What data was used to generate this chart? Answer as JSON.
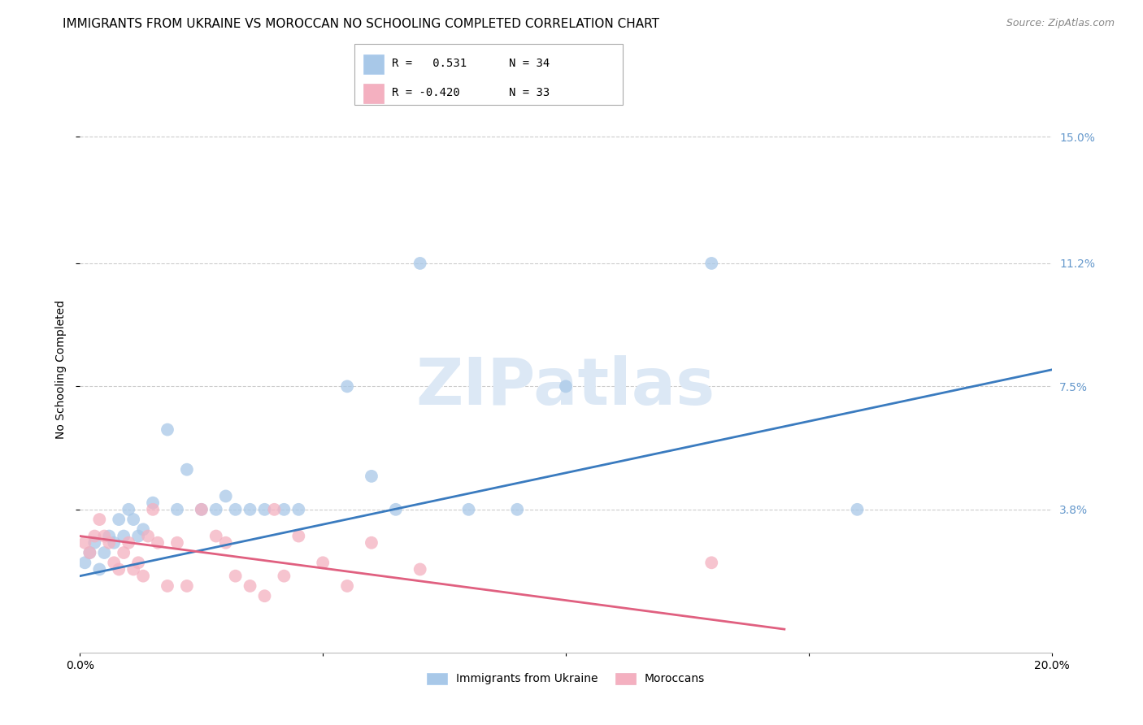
{
  "title": "IMMIGRANTS FROM UKRAINE VS MOROCCAN NO SCHOOLING COMPLETED CORRELATION CHART",
  "source": "Source: ZipAtlas.com",
  "ylabel": "No Schooling Completed",
  "ytick_labels": [
    "15.0%",
    "11.2%",
    "7.5%",
    "3.8%"
  ],
  "ytick_values": [
    0.15,
    0.112,
    0.075,
    0.038
  ],
  "xlim": [
    0.0,
    0.2
  ],
  "ylim": [
    -0.005,
    0.165
  ],
  "watermark": "ZIPatlas",
  "blue_scatter_x": [
    0.001,
    0.002,
    0.003,
    0.004,
    0.005,
    0.006,
    0.007,
    0.008,
    0.009,
    0.01,
    0.011,
    0.012,
    0.013,
    0.015,
    0.018,
    0.02,
    0.022,
    0.025,
    0.028,
    0.03,
    0.032,
    0.035,
    0.038,
    0.042,
    0.045,
    0.055,
    0.06,
    0.065,
    0.07,
    0.08,
    0.09,
    0.1,
    0.13,
    0.16
  ],
  "blue_scatter_y": [
    0.022,
    0.025,
    0.028,
    0.02,
    0.025,
    0.03,
    0.028,
    0.035,
    0.03,
    0.038,
    0.035,
    0.03,
    0.032,
    0.04,
    0.062,
    0.038,
    0.05,
    0.038,
    0.038,
    0.042,
    0.038,
    0.038,
    0.038,
    0.038,
    0.038,
    0.075,
    0.048,
    0.038,
    0.112,
    0.038,
    0.038,
    0.075,
    0.112,
    0.038
  ],
  "pink_scatter_x": [
    0.001,
    0.002,
    0.003,
    0.004,
    0.005,
    0.006,
    0.007,
    0.008,
    0.009,
    0.01,
    0.011,
    0.012,
    0.013,
    0.014,
    0.015,
    0.016,
    0.018,
    0.02,
    0.022,
    0.025,
    0.028,
    0.03,
    0.032,
    0.035,
    0.038,
    0.04,
    0.042,
    0.045,
    0.05,
    0.055,
    0.06,
    0.07,
    0.13
  ],
  "pink_scatter_y": [
    0.028,
    0.025,
    0.03,
    0.035,
    0.03,
    0.028,
    0.022,
    0.02,
    0.025,
    0.028,
    0.02,
    0.022,
    0.018,
    0.03,
    0.038,
    0.028,
    0.015,
    0.028,
    0.015,
    0.038,
    0.03,
    0.028,
    0.018,
    0.015,
    0.012,
    0.038,
    0.018,
    0.03,
    0.022,
    0.015,
    0.028,
    0.02,
    0.022
  ],
  "blue_line_x": [
    0.0,
    0.2
  ],
  "blue_line_y": [
    0.018,
    0.08
  ],
  "pink_line_x": [
    0.0,
    0.145
  ],
  "pink_line_y": [
    0.03,
    0.002
  ],
  "blue_color": "#a8c8e8",
  "pink_color": "#f4b0c0",
  "blue_line_color": "#3a7bbf",
  "pink_line_color": "#e06080",
  "background_color": "#ffffff",
  "grid_color": "#cccccc",
  "title_fontsize": 11,
  "label_fontsize": 10,
  "tick_fontsize": 10,
  "watermark_color": "#dce8f5",
  "right_tick_color": "#6699cc",
  "legend_r1": "R =   0.531",
  "legend_n1": "N = 34",
  "legend_r2": "R = -0.420",
  "legend_n2": "N = 33"
}
